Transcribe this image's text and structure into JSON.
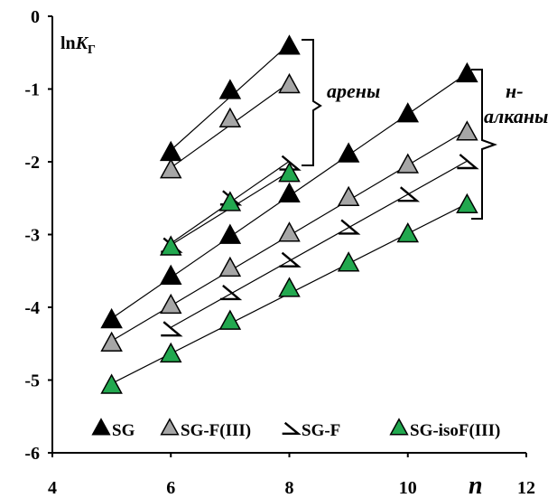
{
  "chart_data": {
    "type": "scatter",
    "title": "",
    "xlabel": "n",
    "ylabel": {
      "prefix": "ln",
      "main": "K",
      "sub": "Г"
    },
    "xlim": [
      4,
      12
    ],
    "ylim": [
      -6,
      0
    ],
    "xticks": [
      "4",
      "6",
      "8",
      "10",
      "12"
    ],
    "yticks": [
      "0",
      "-1",
      "-2",
      "-3",
      "-4",
      "-5",
      "-6"
    ],
    "grid": false,
    "legend_position": "bottom",
    "annotations": {
      "arenes": "арены",
      "alkanes_1": "н-",
      "alkanes_2": "алканы"
    },
    "series": [
      {
        "name": "SG",
        "marker": "triangle",
        "fill": "#000000",
        "groups": [
          {
            "x": [
              5,
              6,
              7,
              8,
              9,
              10,
              11
            ],
            "y": [
              -4.18,
              -3.58,
              -3.02,
              -2.45,
              -1.9,
              -1.35,
              -0.8
            ]
          },
          {
            "x": [
              6,
              7,
              8
            ],
            "y": [
              -1.88,
              -1.03,
              -0.42
            ]
          }
        ]
      },
      {
        "name": "SG-F(III)",
        "marker": "triangle",
        "fill": "#a6a6a6",
        "groups": [
          {
            "x": [
              5,
              6,
              7,
              8,
              9,
              10,
              11
            ],
            "y": [
              -4.5,
              -3.98,
              -3.47,
              -2.99,
              -2.5,
              -2.05,
              -1.6
            ]
          },
          {
            "x": [
              6,
              7,
              8
            ],
            "y": [
              -2.12,
              -1.42,
              -0.95
            ]
          }
        ]
      },
      {
        "name": "SG-F",
        "marker": "half-triangle",
        "fill": "#ffffff",
        "groups": [
          {
            "x": [
              6,
              7,
              8,
              9,
              10,
              11
            ],
            "y": [
              -4.3,
              -3.8,
              -3.35,
              -2.9,
              -2.45,
              -2.0
            ]
          },
          {
            "x": [
              6,
              7,
              8
            ],
            "y": [
              -3.15,
              -2.5,
              -2.02
            ]
          }
        ]
      },
      {
        "name": "SG-isoF(III)",
        "marker": "triangle",
        "fill": "#22a84f",
        "groups": [
          {
            "x": [
              5,
              6,
              7,
              8,
              9,
              10,
              11
            ],
            "y": [
              -5.08,
              -4.65,
              -4.2,
              -3.75,
              -3.4,
              -3.0,
              -2.6
            ]
          },
          {
            "x": [
              6,
              7,
              8
            ],
            "y": [
              -3.18,
              -2.57,
              -2.17
            ]
          }
        ]
      }
    ]
  }
}
